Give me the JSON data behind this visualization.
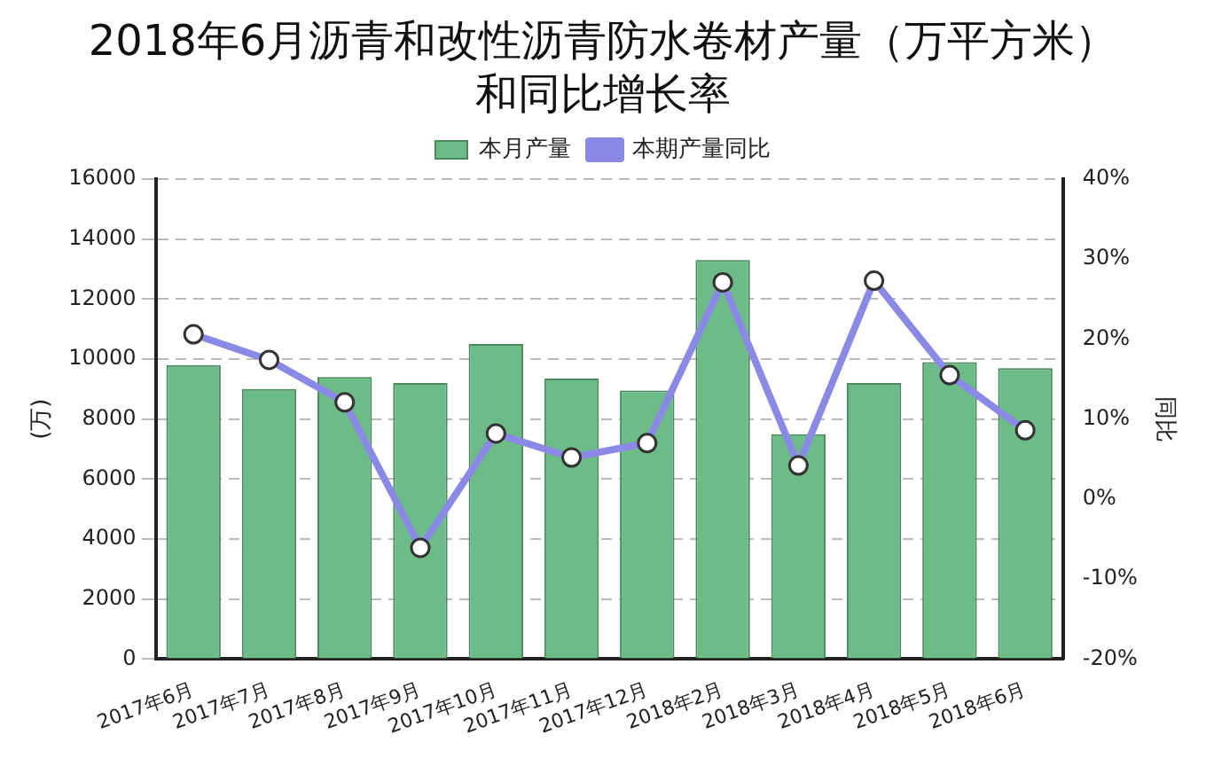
{
  "chart_data": {
    "type": "bar",
    "title": "2018年6月沥青和改性沥青防水卷材产量（万平方米）和同比增长率",
    "ylabel": "(万)",
    "y2label": "同比",
    "categories": [
      "2017年6月",
      "2017年7月",
      "2017年8月",
      "2017年9月",
      "2017年10月",
      "2017年11月",
      "2017年12月",
      "2018年2月",
      "2018年3月",
      "2018年4月",
      "2018年5月",
      "2018年6月"
    ],
    "series": [
      {
        "name": "本月产量",
        "color": "#6dbb86",
        "values": [
          9800,
          9000,
          9400,
          9200,
          10500,
          9350,
          8950,
          13300,
          7500,
          9200,
          9900,
          9700
        ]
      },
      {
        "name": "本期产量同比",
        "type": "line",
        "axis": "y2",
        "color": "#8a8ae6",
        "marker": "circle",
        "values": [
          20.6,
          17.4,
          12.1,
          -6.1,
          8.2,
          5.2,
          7.0,
          27.1,
          4.2,
          27.3,
          15.5,
          8.6
        ]
      }
    ],
    "ylim": [
      0,
      16000
    ],
    "yticks": [
      0,
      2000,
      4000,
      6000,
      8000,
      10000,
      12000,
      14000,
      16000
    ],
    "y2lim": [
      -20,
      40
    ],
    "y2ticks": [
      {
        "value": -20,
        "label": "-20%"
      },
      {
        "value": -10,
        "label": "-10%"
      },
      {
        "value": 0,
        "label": "0%"
      },
      {
        "value": 10,
        "label": "10%"
      },
      {
        "value": 20,
        "label": "20%"
      },
      {
        "value": 30,
        "label": "30%"
      },
      {
        "value": 40,
        "label": "40%"
      }
    ],
    "grid": "y",
    "legend": "top"
  }
}
